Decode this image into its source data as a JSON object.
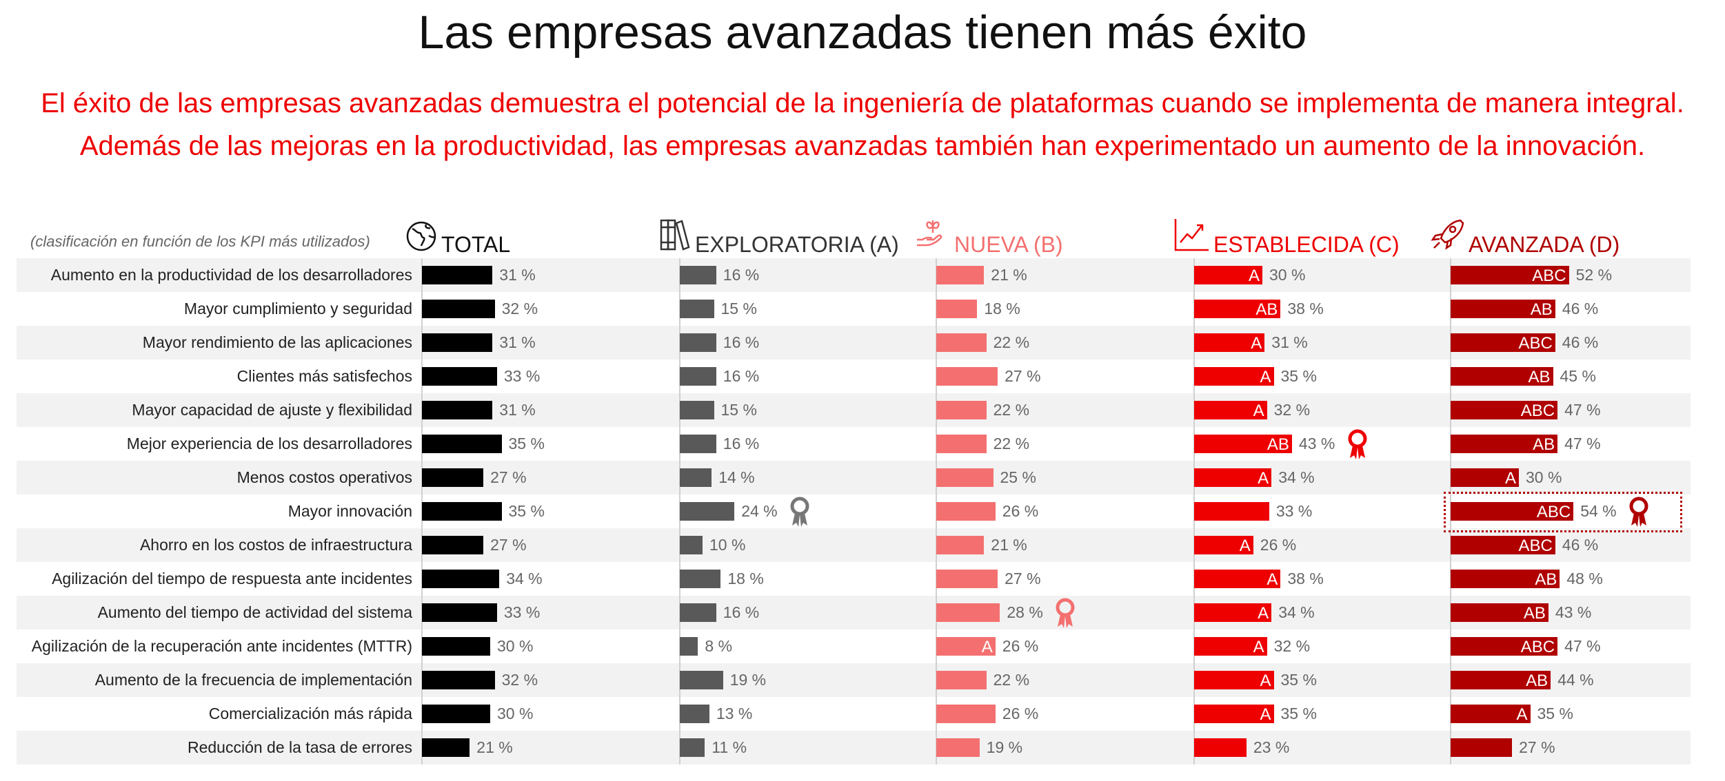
{
  "title": "Las empresas avanzadas tienen más éxito",
  "subtitle_line1": "El éxito de las empresas avanzadas demuestra el potencial de la ingeniería de plataformas cuando se implementa de manera integral.",
  "subtitle_line2": "Además de las mejoras en la productividad, las empresas avanzadas también han experimentado un aumento de la innovación.",
  "chart_data": {
    "type": "bar",
    "orientation": "horizontal",
    "note": "(clasificación en función de los KPI más utilizados)",
    "value_suffix": " %",
    "categories": [
      "Aumento en la productividad de los desarrolladores",
      "Mayor cumplimiento y seguridad",
      "Mayor rendimiento de las aplicaciones",
      "Clientes más satisfechos",
      "Mayor capacidad de ajuste y flexibilidad",
      "Mejor experiencia de los desarrolladores",
      "Menos costos operativos",
      "Mayor innovación",
      "Ahorro en los costos de infraestructura",
      "Agilización del tiempo de respuesta ante incidentes",
      "Aumento del tiempo de actividad del sistema",
      "Agilización de la recuperación ante incidentes (MTTR)",
      "Aumento de la frecuencia de implementación",
      "Comercialización más rápida",
      "Reducción de la tasa de errores"
    ],
    "series": [
      {
        "name": "TOTAL",
        "icon": "globe-icon",
        "color": "#000000",
        "header_color": "#111111",
        "values": [
          31,
          32,
          31,
          33,
          31,
          35,
          27,
          35,
          27,
          34,
          33,
          30,
          32,
          30,
          21
        ],
        "significance": [
          "",
          "",
          "",
          "",
          "",
          "",
          "",
          "",
          "",
          "",
          "",
          "",
          "",
          "",
          ""
        ],
        "award_row": null
      },
      {
        "name": "EXPLORATORIA (A)",
        "icon": "books-icon",
        "color": "#595959",
        "header_color": "#333333",
        "values": [
          16,
          15,
          16,
          16,
          15,
          16,
          14,
          24,
          10,
          18,
          16,
          8,
          19,
          13,
          11
        ],
        "significance": [
          "",
          "",
          "",
          "",
          "",
          "",
          "",
          "",
          "",
          "",
          "",
          "",
          "",
          "",
          ""
        ],
        "award_row": 7,
        "award_color": "#777777"
      },
      {
        "name": "NUEVA (B)",
        "icon": "plant-hand-icon",
        "color": "#f47070",
        "header_color": "#f47070",
        "values": [
          21,
          18,
          22,
          27,
          22,
          22,
          25,
          26,
          21,
          27,
          28,
          26,
          22,
          26,
          19
        ],
        "significance": [
          "",
          "",
          "",
          "",
          "",
          "",
          "",
          "",
          "",
          "",
          "",
          "A",
          "",
          "",
          ""
        ],
        "award_row": 10,
        "award_color": "#f47070"
      },
      {
        "name": "ESTABLECIDA (C)",
        "icon": "trend-chart-icon",
        "color": "#ee0000",
        "header_color": "#ee0000",
        "values": [
          30,
          38,
          31,
          35,
          32,
          43,
          34,
          33,
          26,
          38,
          34,
          32,
          35,
          35,
          23
        ],
        "significance": [
          "A",
          "AB",
          "A",
          "A",
          "A",
          "AB",
          "A",
          "",
          "A",
          "A",
          "A",
          "A",
          "A",
          "A",
          ""
        ],
        "award_row": 5,
        "award_color": "#ee0000"
      },
      {
        "name": "AVANZADA (D)",
        "icon": "rocket-icon",
        "color": "#b00000",
        "header_color": "#b00000",
        "values": [
          52,
          46,
          46,
          45,
          47,
          47,
          30,
          54,
          46,
          48,
          43,
          47,
          44,
          35,
          27
        ],
        "significance": [
          "ABC",
          "AB",
          "ABC",
          "AB",
          "ABC",
          "AB",
          "A",
          "ABC",
          "ABC",
          "AB",
          "AB",
          "ABC",
          "AB",
          "A",
          ""
        ],
        "award_row": 7,
        "award_color": "#b00000",
        "highlight_row": 7
      }
    ],
    "grid": false,
    "legend": "none"
  }
}
